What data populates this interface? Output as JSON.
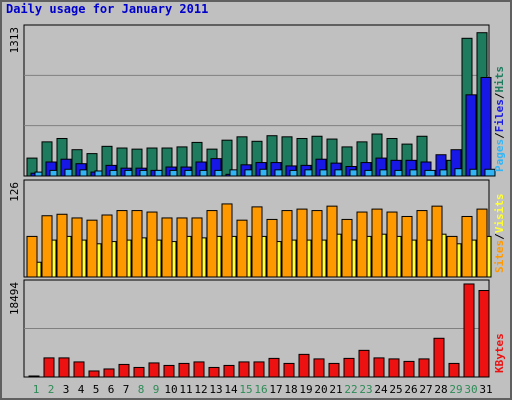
{
  "title": "Daily usage for January 2011",
  "colors": {
    "background": "#c0c0c0",
    "border": "#606060",
    "title": "#0000cc",
    "hits": "#1e7b5e",
    "files": "#1717e6",
    "pages": "#33b5f5",
    "visits": "#ff9900",
    "sites": "#ffff33",
    "kbytes": "#ee1111",
    "weekend_day": "#2e8b57",
    "weekday_day": "#000000"
  },
  "chart_data": [
    {
      "type": "bar",
      "panel": "hits",
      "ymax_label": "1313",
      "ylim": [
        0,
        1313
      ],
      "right_label": [
        "Pages",
        "Files",
        "Hits"
      ],
      "right_label_colors": [
        "#33b5f5",
        "#1717e6",
        "#1e7b5e"
      ],
      "categories": [
        "1",
        "2",
        "3",
        "4",
        "5",
        "6",
        "7",
        "8",
        "9",
        "10",
        "11",
        "12",
        "13",
        "14",
        "15",
        "16",
        "17",
        "18",
        "19",
        "20",
        "21",
        "22",
        "23",
        "24",
        "25",
        "26",
        "27",
        "28",
        "29",
        "30",
        "31"
      ],
      "weekend": [
        1,
        2,
        8,
        9,
        15,
        16,
        22,
        23,
        29,
        30
      ],
      "series": [
        {
          "name": "Hits",
          "color": "#1e7b5e",
          "values": [
            160,
            305,
            335,
            235,
            200,
            265,
            250,
            240,
            250,
            250,
            260,
            300,
            240,
            320,
            350,
            310,
            360,
            350,
            335,
            355,
            330,
            260,
            305,
            375,
            335,
            285,
            355,
            0,
            140,
            1230,
            1280
          ]
        },
        {
          "name": "Files",
          "color": "#1717e6",
          "values": [
            25,
            125,
            150,
            110,
            35,
            95,
            70,
            70,
            50,
            80,
            80,
            125,
            155,
            15,
            100,
            120,
            120,
            90,
            95,
            150,
            115,
            85,
            120,
            160,
            140,
            140,
            125,
            190,
            235,
            725,
            880
          ]
        },
        {
          "name": "Pages",
          "color": "#33b5f5",
          "values": [
            35,
            50,
            60,
            55,
            45,
            50,
            50,
            50,
            50,
            50,
            50,
            50,
            50,
            55,
            55,
            60,
            55,
            50,
            55,
            55,
            55,
            55,
            50,
            55,
            50,
            55,
            50,
            55,
            65,
            60,
            60
          ]
        }
      ]
    },
    {
      "type": "bar",
      "panel": "visits",
      "ymax_label": "126",
      "ylim": [
        0,
        126
      ],
      "right_label": [
        "Sites",
        "Visits"
      ],
      "right_label_colors": [
        "#ff9900",
        "#ffff33"
      ],
      "categories": [
        "1",
        "2",
        "3",
        "4",
        "5",
        "6",
        "7",
        "8",
        "9",
        "10",
        "11",
        "12",
        "13",
        "14",
        "15",
        "16",
        "17",
        "18",
        "19",
        "20",
        "21",
        "22",
        "23",
        "24",
        "25",
        "26",
        "27",
        "28",
        "29",
        "30",
        "31"
      ],
      "weekend": [
        1,
        2,
        8,
        9,
        15,
        16,
        22,
        23,
        29,
        30
      ],
      "series": [
        {
          "name": "Visits",
          "color": "#ffff33",
          "values": [
            20,
            50,
            55,
            50,
            45,
            48,
            50,
            53,
            50,
            48,
            55,
            53,
            55,
            55,
            55,
            55,
            48,
            50,
            50,
            50,
            58,
            50,
            55,
            58,
            55,
            50,
            50,
            58,
            45,
            50,
            55
          ]
        },
        {
          "name": "Sites",
          "color": "#ff9900",
          "values": [
            55,
            83,
            85,
            80,
            77,
            84,
            90,
            90,
            88,
            80,
            80,
            80,
            90,
            99,
            77,
            95,
            78,
            90,
            92,
            90,
            96,
            78,
            88,
            92,
            88,
            82,
            90,
            96,
            55,
            82,
            92
          ]
        }
      ]
    },
    {
      "type": "bar",
      "panel": "kbytes",
      "ymax_label": "18494",
      "ylim": [
        0,
        18494
      ],
      "right_label": [
        "KBytes"
      ],
      "right_label_colors": [
        "#ee1111"
      ],
      "categories": [
        "1",
        "2",
        "3",
        "4",
        "5",
        "6",
        "7",
        "8",
        "9",
        "10",
        "11",
        "12",
        "13",
        "14",
        "15",
        "16",
        "17",
        "18",
        "19",
        "20",
        "21",
        "22",
        "23",
        "24",
        "25",
        "26",
        "27",
        "28",
        "29",
        "30",
        "31"
      ],
      "weekend": [
        1,
        2,
        8,
        9,
        15,
        16,
        22,
        23,
        29,
        30
      ],
      "series": [
        {
          "name": "KBytes",
          "color": "#ee1111",
          "values": [
            200,
            3800,
            3800,
            3000,
            1200,
            1600,
            2500,
            1900,
            2800,
            2300,
            2700,
            3000,
            1900,
            2300,
            3000,
            3000,
            3700,
            2700,
            4500,
            3600,
            2700,
            3700,
            5300,
            3800,
            3600,
            3100,
            3600,
            7700,
            2700,
            18500,
            17200
          ]
        }
      ]
    }
  ]
}
